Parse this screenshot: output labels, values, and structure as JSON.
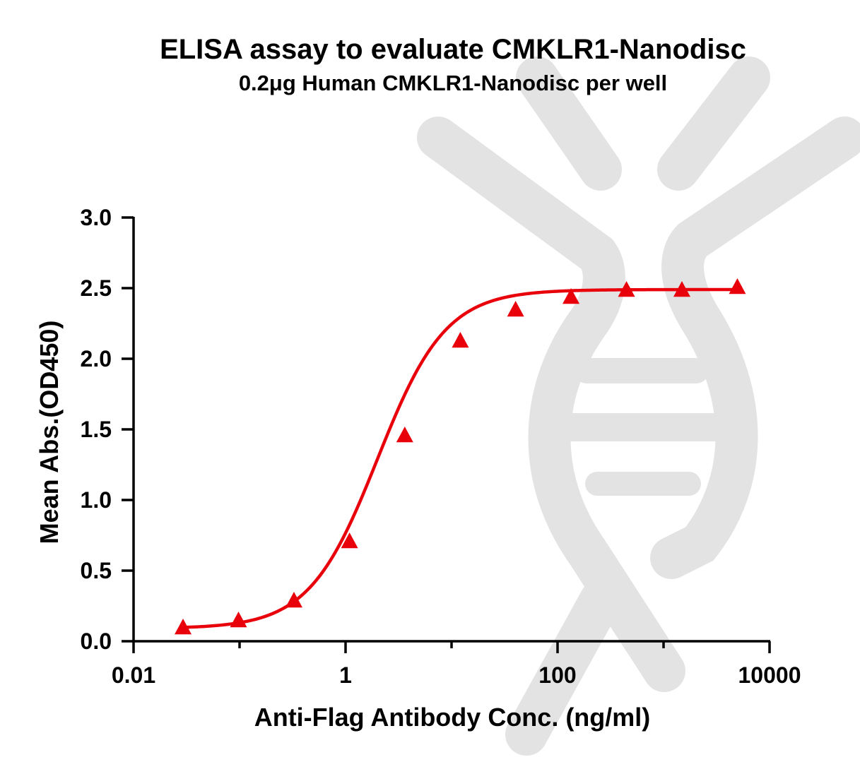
{
  "chart_data": {
    "type": "scatter",
    "title": "ELISA assay to evaluate CMKLR1-Nanodisc",
    "subtitle": "0.2μg Human CMKLR1-Nanodisc per well",
    "xlabel": "Anti-Flag Antibody Conc. (ng/ml)",
    "ylabel": "Mean Abs.(OD450)",
    "x_scale": "log",
    "xlim": [
      0.01,
      10000
    ],
    "ylim": [
      0,
      3.0
    ],
    "x_ticks": [
      {
        "value": 0.01,
        "label": "0.01"
      },
      {
        "value": 1,
        "label": "1"
      },
      {
        "value": 100,
        "label": "100"
      },
      {
        "value": 10000,
        "label": "10000"
      }
    ],
    "y_ticks": [
      {
        "value": 0,
        "label": "0.0"
      },
      {
        "value": 0.5,
        "label": "0.5"
      },
      {
        "value": 1.0,
        "label": "1.0"
      },
      {
        "value": 1.5,
        "label": "1.5"
      },
      {
        "value": 2.0,
        "label": "2.0"
      },
      {
        "value": 2.5,
        "label": "2.5"
      },
      {
        "value": 3.0,
        "label": "3.0"
      }
    ],
    "grid": false,
    "legend": "none",
    "series": [
      {
        "color": "#e8000b",
        "marker": "triangle",
        "fit": "4PL sigmoid curve",
        "points": [
          {
            "x": 0.0293,
            "y": 0.1
          },
          {
            "x": 0.0977,
            "y": 0.15
          },
          {
            "x": 0.326,
            "y": 0.29
          },
          {
            "x": 1.09,
            "y": 0.71
          },
          {
            "x": 3.62,
            "y": 1.46
          },
          {
            "x": 12.1,
            "y": 2.13
          },
          {
            "x": 40.2,
            "y": 2.35
          },
          {
            "x": 134,
            "y": 2.44
          },
          {
            "x": 447,
            "y": 2.49
          },
          {
            "x": 1490,
            "y": 2.49
          },
          {
            "x": 4970,
            "y": 2.51
          }
        ],
        "curve_params": {
          "bottom": 0.09,
          "top": 2.49,
          "ec50": 2.0,
          "hill": 1.35
        }
      }
    ]
  }
}
